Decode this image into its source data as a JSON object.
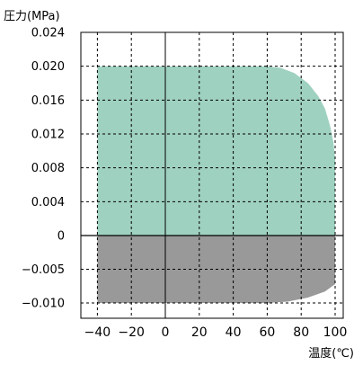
{
  "chart_data": {
    "type": "area",
    "y_axis_label": "圧力(MPa)",
    "x_axis_label": "温度(℃)",
    "xlim": [
      -40,
      100
    ],
    "x_axis_max_plot": 105,
    "xticks": [
      -40,
      -20,
      0,
      20,
      40,
      60,
      80,
      100
    ],
    "xtick_labels": [
      "−40",
      "−20",
      "0",
      "20",
      "40",
      "60",
      "80",
      "100"
    ],
    "yticks": [
      {
        "value": 0.024,
        "label": "0.024"
      },
      {
        "value": 0.02,
        "label": "0.020"
      },
      {
        "value": 0.016,
        "label": "0.016"
      },
      {
        "value": 0.012,
        "label": "0.012"
      },
      {
        "value": 0.008,
        "label": "0.008"
      },
      {
        "value": 0.004,
        "label": "0.004"
      },
      {
        "value": 0,
        "label": "0"
      },
      {
        "value": -0.005,
        "label": "−0.005"
      },
      {
        "value": -0.01,
        "label": "−0.010"
      }
    ],
    "grid": "dashed",
    "regions": [
      {
        "name": "positive pressure",
        "color": "#9fd1c0",
        "boundary": [
          [
            -40,
            0
          ],
          [
            -40,
            0.02
          ],
          [
            60,
            0.02
          ],
          [
            68,
            0.0198
          ],
          [
            76,
            0.0192
          ],
          [
            84,
            0.018
          ],
          [
            90,
            0.0165
          ],
          [
            94,
            0.015
          ],
          [
            97,
            0.013
          ],
          [
            99,
            0.011
          ],
          [
            100,
            0.009
          ],
          [
            100,
            0
          ]
        ]
      },
      {
        "name": "negative pressure",
        "color": "#999999",
        "boundary": [
          [
            -40,
            0
          ],
          [
            -40,
            -0.01
          ],
          [
            60,
            -0.01
          ],
          [
            72,
            -0.0098
          ],
          [
            84,
            -0.0092
          ],
          [
            94,
            -0.0083
          ],
          [
            100,
            -0.0072
          ],
          [
            100,
            0
          ]
        ]
      }
    ]
  }
}
